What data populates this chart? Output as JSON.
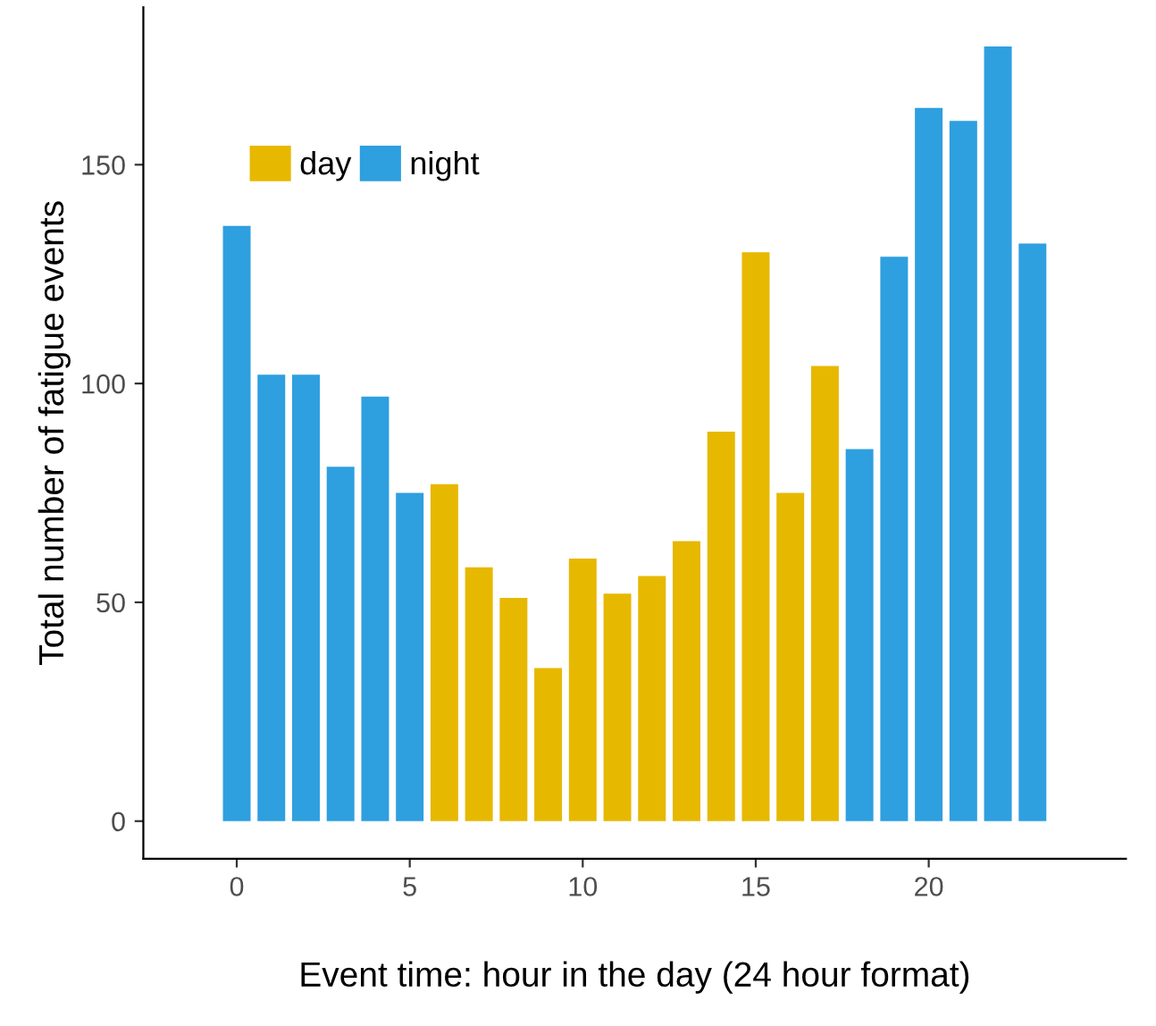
{
  "chart_data": {
    "type": "bar",
    "xlabel": "Event time: hour in the day (24 hour format)",
    "ylabel": "Total number of fatigue events",
    "x": [
      0,
      1,
      2,
      3,
      4,
      5,
      6,
      7,
      8,
      9,
      10,
      11,
      12,
      13,
      14,
      15,
      16,
      17,
      18,
      19,
      20,
      21,
      22,
      23
    ],
    "series": [
      {
        "name": "day",
        "color": "#e7b800",
        "values": [
          null,
          null,
          null,
          null,
          null,
          null,
          77,
          58,
          51,
          35,
          60,
          52,
          56,
          64,
          89,
          130,
          75,
          104,
          null,
          null,
          null,
          null,
          null,
          null
        ]
      },
      {
        "name": "night",
        "color": "#2e9fdf",
        "values": [
          136,
          102,
          102,
          81,
          97,
          75,
          null,
          null,
          null,
          null,
          null,
          null,
          null,
          null,
          null,
          null,
          null,
          null,
          85,
          129,
          163,
          160,
          177,
          132
        ]
      }
    ],
    "xlim": [
      -2.7,
      25.7
    ],
    "xticks": [
      0,
      5,
      10,
      15,
      20
    ],
    "ylim": [
      -8.6,
      186
    ],
    "yticks": [
      0,
      50,
      100,
      150
    ],
    "grid": false,
    "legend": "top left"
  }
}
